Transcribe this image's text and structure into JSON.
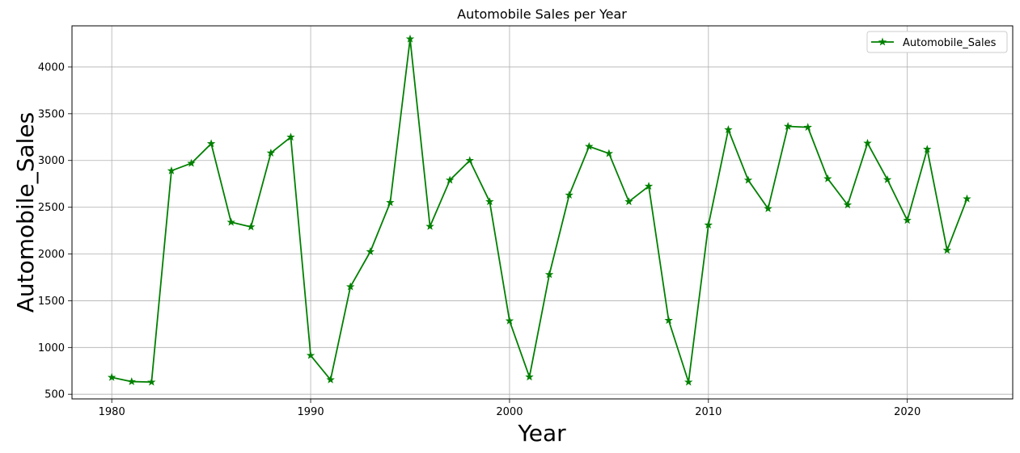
{
  "chart_data": {
    "type": "line",
    "title": "Automobile Sales per Year",
    "xlabel": "Year",
    "ylabel": "Automobile_Sales",
    "xlim": [
      1978,
      2025.3
    ],
    "ylim": [
      450,
      4440
    ],
    "xticks": [
      1980,
      1990,
      2000,
      2010,
      2020
    ],
    "yticks": [
      500,
      1000,
      1500,
      2000,
      2500,
      3000,
      3500,
      4000
    ],
    "grid": true,
    "legend_position": "top-right",
    "series": [
      {
        "name": "Automobile_Sales",
        "color": "#008000",
        "marker": "star",
        "x": [
          1980,
          1981,
          1982,
          1983,
          1984,
          1985,
          1986,
          1987,
          1988,
          1989,
          1990,
          1991,
          1992,
          1993,
          1994,
          1995,
          1996,
          1997,
          1998,
          1999,
          2000,
          2001,
          2002,
          2003,
          2004,
          2005,
          2006,
          2007,
          2008,
          2009,
          2010,
          2011,
          2012,
          2013,
          2014,
          2015,
          2016,
          2017,
          2018,
          2019,
          2020,
          2021,
          2022,
          2023
        ],
        "values": [
          680,
          635,
          630,
          2890,
          2970,
          3180,
          2340,
          2290,
          3080,
          3250,
          915,
          655,
          1650,
          2025,
          2550,
          4300,
          2295,
          2790,
          3000,
          2560,
          1285,
          685,
          1780,
          2630,
          3150,
          3075,
          2560,
          2725,
          1290,
          630,
          2310,
          3330,
          2790,
          2485,
          3365,
          3355,
          2805,
          2525,
          3185,
          2795,
          2360,
          3120,
          2040,
          2590
        ]
      }
    ]
  }
}
